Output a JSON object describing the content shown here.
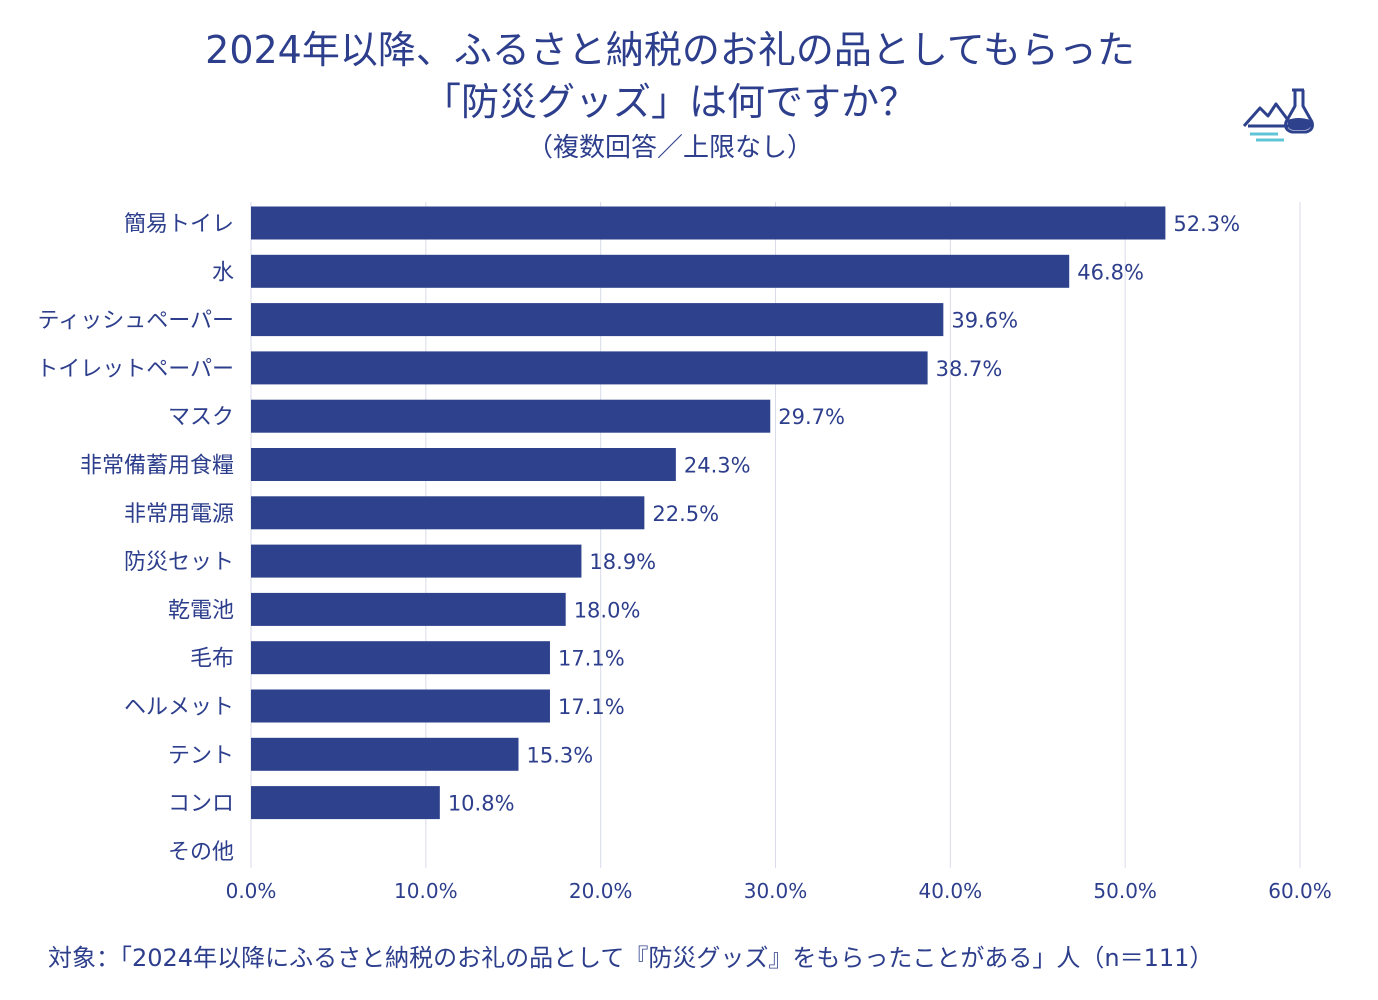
{
  "header": {
    "title_line1": "2024年以降、ふるさと納税のお礼の品としてもらった",
    "title_line2": "「防災グッズ」は何ですか？",
    "subtitle": "（複数回答／上限なし）"
  },
  "footnote": "対象：「2024年以降にふるさと納税のお礼の品として『防災グッズ』をもらったことがある」人（n＝111）",
  "logo": {
    "icon": "flask-landscape-icon"
  },
  "colors": {
    "bar": "#2d418c",
    "text": "#2d3e8c",
    "grid": "#d9dbe8"
  },
  "chart_data": {
    "type": "bar",
    "orientation": "horizontal",
    "categories": [
      "簡易トイレ",
      "水",
      "ティッシュペーパー",
      "トイレットペーパー",
      "マスク",
      "非常備蓄用食糧",
      "非常用電源",
      "防災セット",
      "乾電池",
      "毛布",
      "ヘルメット",
      "テント",
      "コンロ",
      "その他"
    ],
    "values": [
      52.3,
      46.8,
      39.6,
      38.7,
      29.7,
      24.3,
      22.5,
      18.9,
      18.0,
      17.1,
      17.1,
      15.3,
      10.8,
      null
    ],
    "value_labels": [
      "52.3%",
      "46.8%",
      "39.6%",
      "38.7%",
      "29.7%",
      "24.3%",
      "22.5%",
      "18.9%",
      "18.0%",
      "17.1%",
      "17.1%",
      "15.3%",
      "10.8%",
      ""
    ],
    "xlim": [
      0,
      60
    ],
    "xticks": [
      0,
      10,
      20,
      30,
      40,
      50,
      60
    ],
    "xtick_labels": [
      "0.0%",
      "10.0%",
      "20.0%",
      "30.0%",
      "40.0%",
      "50.0%",
      "60.0%"
    ],
    "grid": "vertical",
    "legend": "none"
  }
}
